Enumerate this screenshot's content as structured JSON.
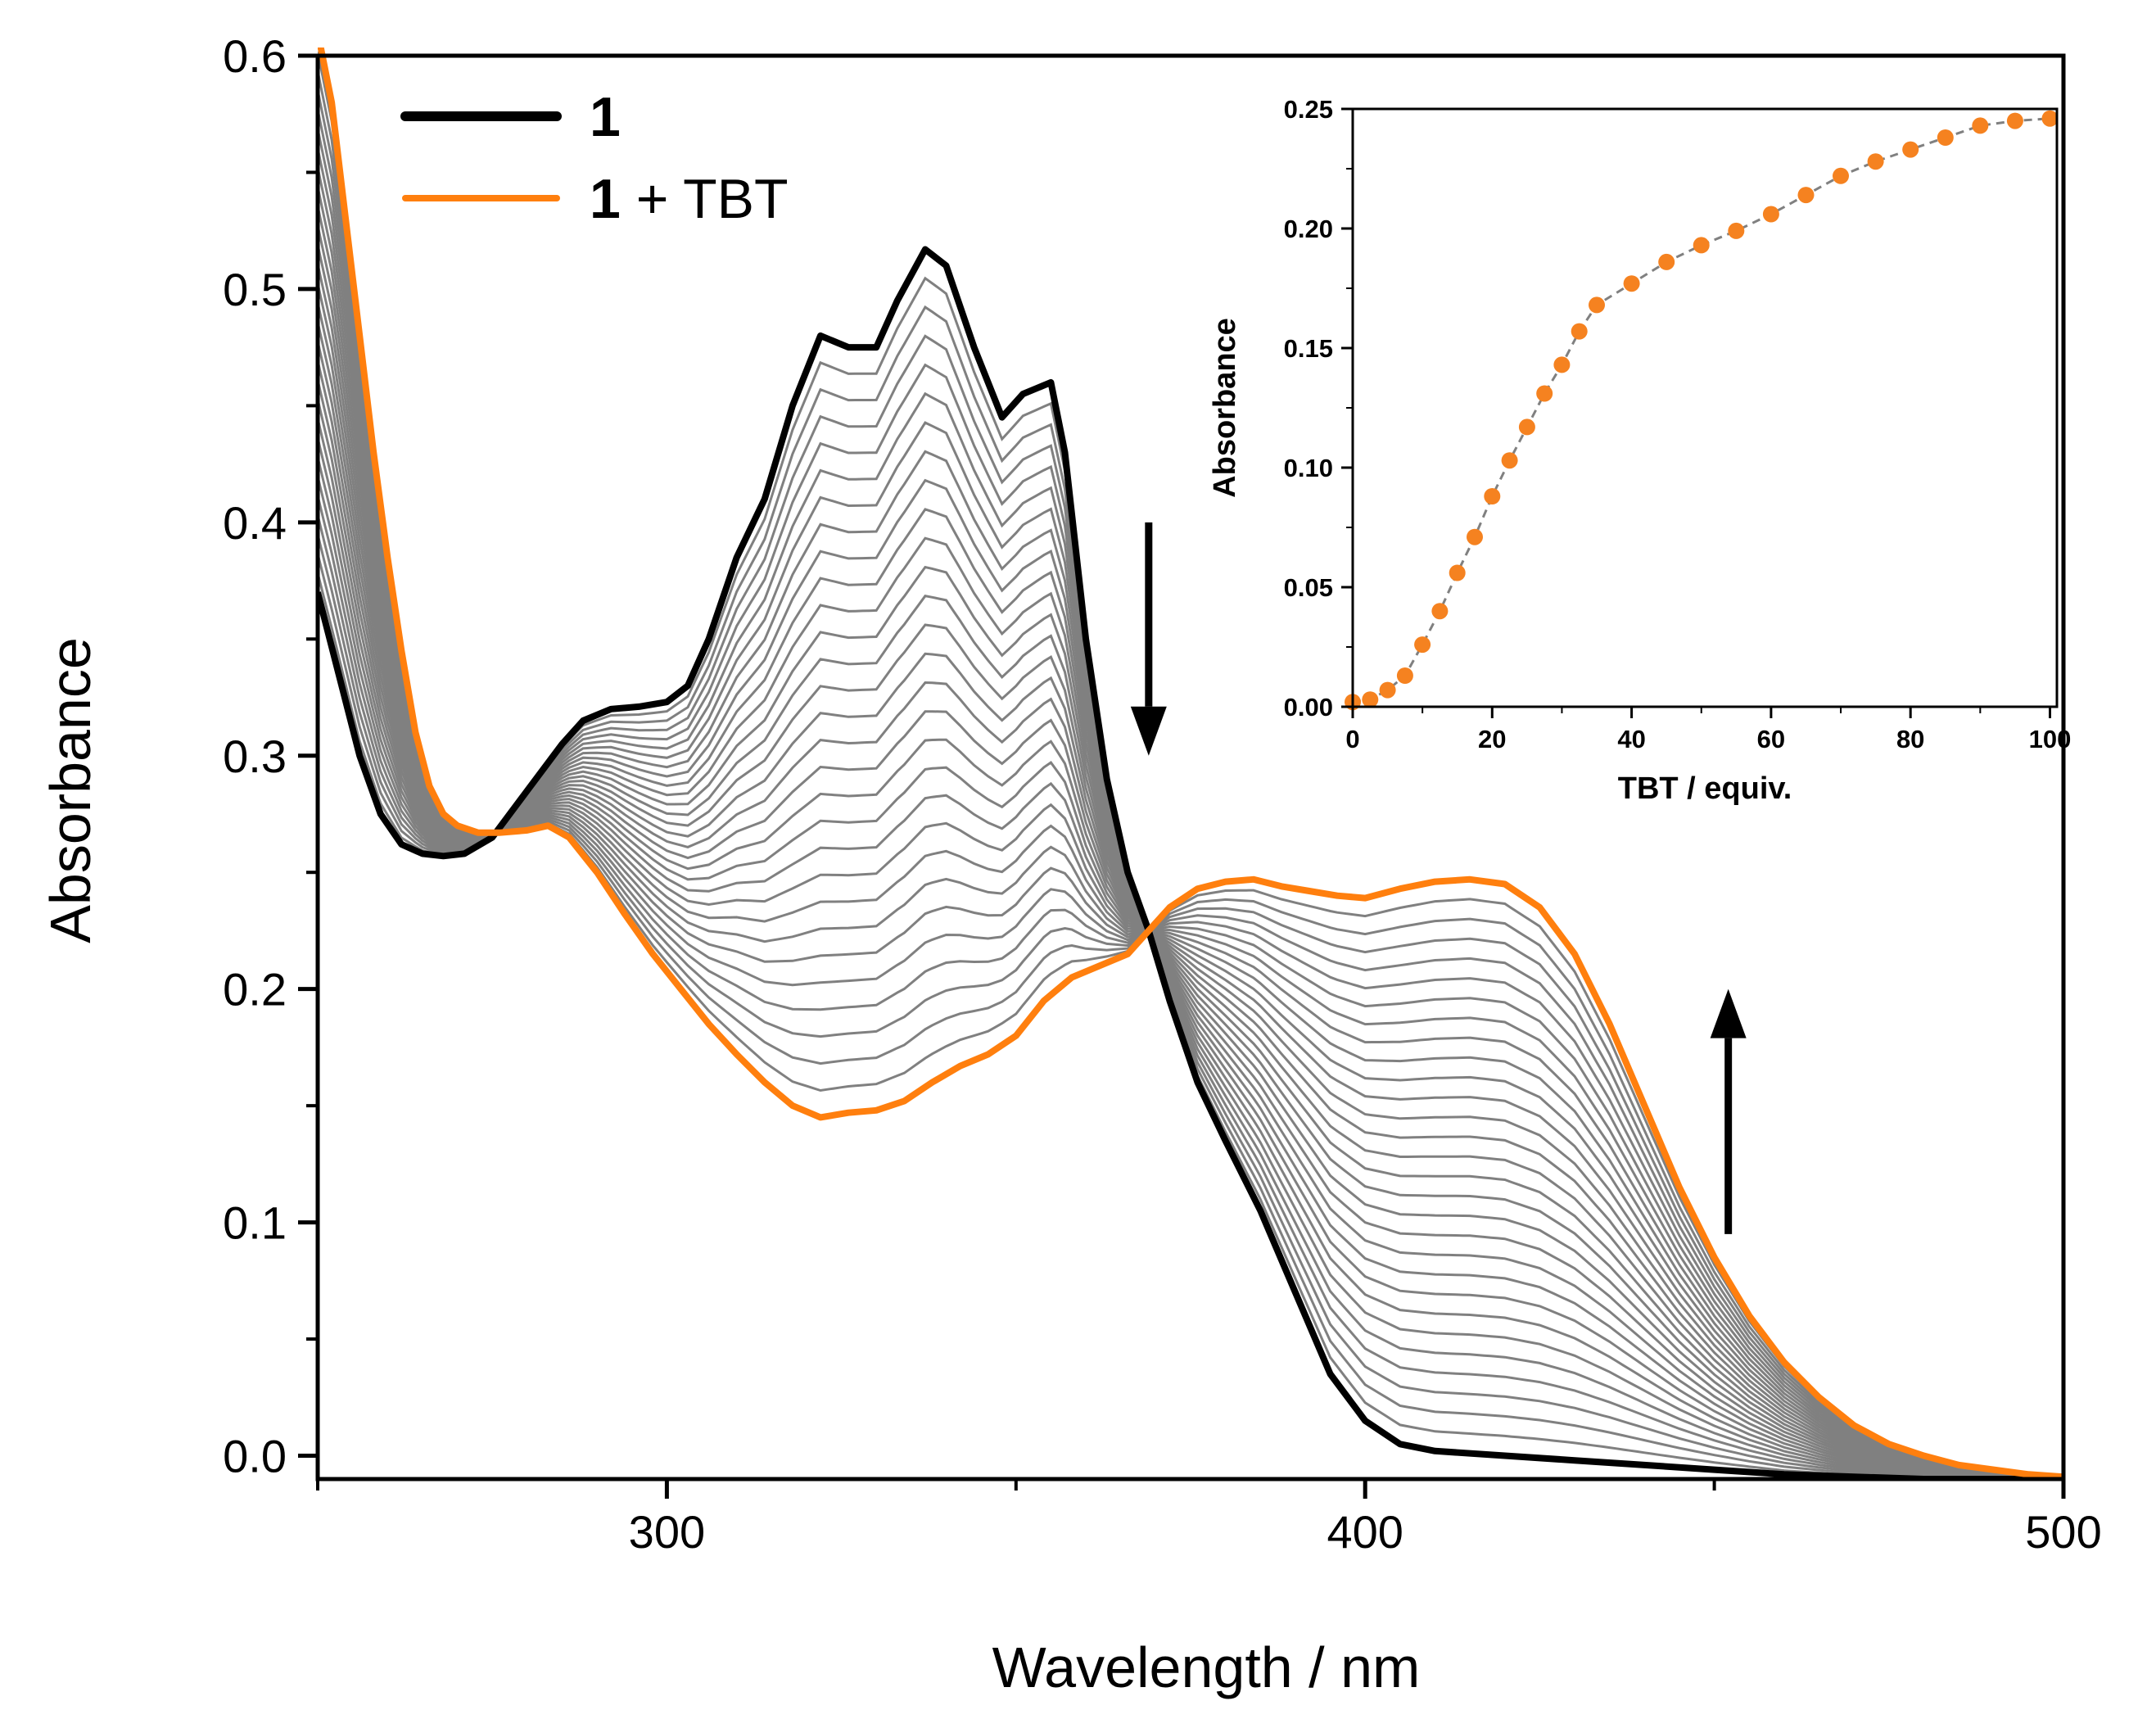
{
  "colors": {
    "axis": "#000000",
    "initial": "#000000",
    "final": "#ff7f0e",
    "intermediate": "#808080",
    "inset_marker": "#f58220",
    "inset_line": "#808080",
    "background": "#ffffff"
  },
  "chart_data": [
    {
      "id": "main",
      "type": "line",
      "title": "",
      "xlabel": "Wavelength / nm",
      "ylabel": "Absorbance",
      "xlim": [
        250,
        500
      ],
      "ylim": [
        -0.01,
        0.6
      ],
      "x_ticks": [
        300,
        400,
        500
      ],
      "x_tick_labels": [
        "300",
        "400",
        "500"
      ],
      "y_ticks": [
        0.0,
        0.1,
        0.2,
        0.3,
        0.4,
        0.5,
        0.6
      ],
      "y_tick_labels": [
        "0.0",
        "0.1",
        "0.2",
        "0.3",
        "0.4",
        "0.5",
        "0.6"
      ],
      "grid": false,
      "legend": {
        "position": "top-left",
        "entries": [
          {
            "label_bold": "1",
            "label_rest": "",
            "series": "1"
          },
          {
            "label_bold": "1",
            "label_rest": " + TBT",
            "series": "1 + TBT"
          }
        ]
      },
      "annotations": [
        {
          "type": "arrow",
          "direction": "down",
          "x": 369,
          "y_from": 0.4,
          "y_to": 0.3
        },
        {
          "type": "arrow",
          "direction": "up",
          "x": 452,
          "y_from": 0.095,
          "y_to": 0.2
        }
      ],
      "intermediate_count": 28,
      "series": [
        {
          "name": "1",
          "role": "initial",
          "x": [
            250,
            253,
            256,
            259,
            262,
            265,
            268,
            271,
            275,
            280,
            285,
            288,
            292,
            296,
            300,
            303,
            306,
            310,
            314,
            318,
            322,
            326,
            330,
            333,
            337,
            340,
            344,
            348,
            351,
            355,
            357,
            360,
            363,
            366,
            369,
            372,
            376,
            380,
            385,
            390,
            395,
            400,
            405,
            410,
            420,
            430,
            440,
            450,
            460,
            470,
            480,
            490,
            500
          ],
          "y": [
            0.37,
            0.335,
            0.3,
            0.275,
            0.262,
            0.258,
            0.257,
            0.258,
            0.265,
            0.285,
            0.305,
            0.315,
            0.32,
            0.321,
            0.323,
            0.33,
            0.35,
            0.385,
            0.41,
            0.45,
            0.48,
            0.475,
            0.475,
            0.495,
            0.517,
            0.51,
            0.475,
            0.445,
            0.455,
            0.46,
            0.43,
            0.35,
            0.29,
            0.25,
            0.225,
            0.195,
            0.16,
            0.135,
            0.105,
            0.07,
            0.035,
            0.015,
            0.005,
            0.002,
            0.0,
            -0.002,
            -0.004,
            -0.006,
            -0.008,
            -0.009,
            -0.01,
            -0.01,
            -0.01
          ]
        },
        {
          "name": "1 + TBT",
          "role": "final",
          "x": [
            250,
            252,
            254,
            256,
            258,
            260,
            262,
            264,
            266,
            268,
            270,
            273,
            276,
            280,
            283,
            286,
            290,
            294,
            298,
            302,
            306,
            310,
            314,
            318,
            322,
            326,
            330,
            334,
            338,
            342,
            346,
            350,
            354,
            358,
            362,
            366,
            369,
            372,
            376,
            380,
            384,
            388,
            392,
            396,
            400,
            405,
            410,
            415,
            420,
            425,
            430,
            435,
            440,
            445,
            450,
            455,
            460,
            465,
            470,
            475,
            480,
            485,
            490,
            495,
            500
          ],
          "y": [
            0.61,
            0.58,
            0.53,
            0.48,
            0.43,
            0.385,
            0.345,
            0.31,
            0.287,
            0.275,
            0.27,
            0.267,
            0.267,
            0.268,
            0.27,
            0.265,
            0.25,
            0.232,
            0.215,
            0.2,
            0.185,
            0.172,
            0.16,
            0.15,
            0.145,
            0.147,
            0.148,
            0.152,
            0.16,
            0.167,
            0.172,
            0.18,
            0.195,
            0.205,
            0.21,
            0.215,
            0.225,
            0.235,
            0.243,
            0.246,
            0.247,
            0.244,
            0.242,
            0.24,
            0.239,
            0.243,
            0.246,
            0.247,
            0.245,
            0.235,
            0.215,
            0.185,
            0.15,
            0.115,
            0.085,
            0.06,
            0.04,
            0.025,
            0.013,
            0.005,
            0.0,
            -0.004,
            -0.006,
            -0.008,
            -0.009
          ]
        }
      ]
    },
    {
      "id": "inset",
      "type": "scatter",
      "title": "",
      "xlabel": "TBT / equiv.",
      "ylabel": "Absorbance",
      "xlim": [
        0,
        101
      ],
      "ylim": [
        0,
        0.25
      ],
      "x_ticks": [
        0,
        20,
        40,
        60,
        80,
        100
      ],
      "x_tick_labels": [
        "0",
        "20",
        "40",
        "60",
        "80",
        "100"
      ],
      "y_ticks": [
        0.0,
        0.05,
        0.1,
        0.15,
        0.2,
        0.25
      ],
      "y_tick_labels": [
        "0.00",
        "0.05",
        "0.10",
        "0.15",
        "0.20",
        "0.25"
      ],
      "grid": false,
      "connected_by": "dashed-line",
      "series": [
        {
          "name": "Absorbance",
          "x": [
            0,
            2.5,
            5,
            7.5,
            10,
            12.5,
            15,
            17.5,
            20,
            22.5,
            25,
            27.5,
            30,
            32.5,
            35,
            40,
            45,
            50,
            55,
            60,
            65,
            70,
            75,
            80,
            85,
            90,
            95,
            100
          ],
          "y": [
            0.002,
            0.003,
            0.007,
            0.013,
            0.026,
            0.04,
            0.056,
            0.071,
            0.088,
            0.103,
            0.117,
            0.131,
            0.143,
            0.157,
            0.168,
            0.177,
            0.186,
            0.193,
            0.199,
            0.206,
            0.214,
            0.222,
            0.228,
            0.233,
            0.238,
            0.243,
            0.245,
            0.246
          ]
        }
      ]
    }
  ]
}
